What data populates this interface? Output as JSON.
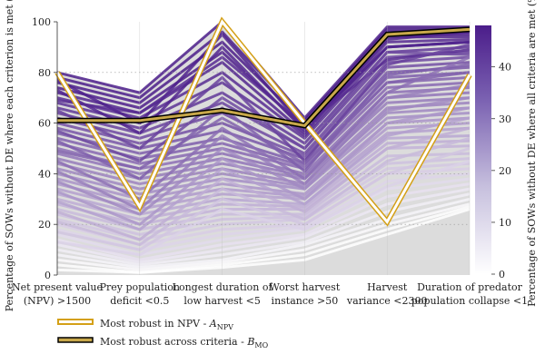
{
  "chart_data": {
    "type": "parallel-coordinates",
    "ylabel": "Percentage of SOWs without DE where each criterion is met (%)",
    "ylim": [
      0,
      100
    ],
    "yticks": [
      0,
      20,
      40,
      60,
      80,
      100
    ],
    "categories": [
      [
        "Net present value",
        "(NPV) >1500"
      ],
      [
        "Prey population",
        "deficit <0.5"
      ],
      [
        "Longest duration of",
        "low harvest <5"
      ],
      [
        "Worst harvest",
        "instance >50"
      ],
      [
        "Harvest",
        "variance <2300"
      ],
      [
        "Duration of predator",
        "population collapse <1"
      ]
    ],
    "colorbar": {
      "label": "Percentage of SOWs without DE where all criteria are met (%)",
      "range": [
        0,
        48
      ],
      "ticks": [
        0,
        10,
        20,
        30,
        40
      ],
      "color_low": "#ffffff",
      "color_high": "#4b1d8a"
    },
    "background_region": {
      "color": "#dcdcdc",
      "upper": [
        80,
        72,
        100,
        62,
        98,
        98
      ],
      "lower": [
        0,
        0,
        0,
        0,
        0,
        0
      ]
    },
    "series": [
      {
        "name": "Most robust in NPV - A_NPV",
        "values": [
          80,
          27,
          100,
          60,
          21,
          79
        ],
        "fill": "#ffffff",
        "outline": "#d4a017"
      },
      {
        "name": "Most robust across criteria - B_MO",
        "values": [
          61,
          61,
          65,
          59,
          95,
          97
        ],
        "fill": "#c8a84a",
        "outline": "#000000"
      }
    ],
    "bundle_lines": [
      [
        80,
        72,
        100,
        62,
        98,
        98
      ],
      [
        78,
        70,
        96,
        61,
        97,
        97
      ],
      [
        76,
        68,
        92,
        60,
        96,
        96
      ],
      [
        74,
        66,
        88,
        58,
        95,
        95
      ],
      [
        72,
        64,
        84,
        56,
        94,
        94
      ],
      [
        70,
        62,
        80,
        55,
        92,
        93
      ],
      [
        68,
        60,
        76,
        54,
        90,
        92
      ],
      [
        66,
        58,
        72,
        52,
        88,
        90
      ],
      [
        64,
        56,
        68,
        50,
        86,
        88
      ],
      [
        62,
        54,
        64,
        48,
        84,
        86
      ],
      [
        60,
        52,
        60,
        47,
        82,
        84
      ],
      [
        58,
        50,
        57,
        46,
        80,
        82
      ],
      [
        56,
        48,
        54,
        44,
        78,
        80
      ],
      [
        54,
        46,
        52,
        43,
        76,
        78
      ],
      [
        52,
        44,
        50,
        42,
        74,
        76
      ],
      [
        50,
        42,
        48,
        40,
        72,
        74
      ],
      [
        48,
        40,
        46,
        39,
        70,
        72
      ],
      [
        46,
        38,
        44,
        38,
        68,
        70
      ],
      [
        44,
        36,
        42,
        36,
        66,
        68
      ],
      [
        42,
        34,
        40,
        35,
        64,
        66
      ],
      [
        40,
        32,
        38,
        34,
        62,
        64
      ],
      [
        38,
        30,
        36,
        32,
        60,
        62
      ],
      [
        36,
        28,
        34,
        31,
        58,
        60
      ],
      [
        34,
        26,
        32,
        30,
        56,
        58
      ],
      [
        32,
        24,
        30,
        28,
        54,
        55
      ],
      [
        30,
        22,
        28,
        27,
        52,
        53
      ],
      [
        28,
        20,
        26,
        26,
        50,
        51
      ],
      [
        26,
        18,
        24,
        24,
        47,
        48
      ],
      [
        24,
        16,
        22,
        23,
        44,
        46
      ],
      [
        22,
        14,
        20,
        22,
        42,
        44
      ],
      [
        20,
        12,
        18,
        20,
        40,
        42
      ],
      [
        18,
        10,
        16,
        19,
        37,
        40
      ],
      [
        16,
        8,
        14,
        18,
        34,
        38
      ],
      [
        14,
        6,
        12,
        16,
        31,
        36
      ],
      [
        12,
        5,
        10,
        15,
        28,
        34
      ],
      [
        10,
        4,
        8,
        13,
        25,
        32
      ],
      [
        8,
        3,
        6,
        12,
        22,
        30
      ],
      [
        6,
        2,
        5,
        10,
        20,
        28
      ],
      [
        4,
        1,
        4,
        8,
        18,
        27
      ],
      [
        2,
        1,
        3,
        6,
        16,
        26
      ],
      [
        77,
        60,
        95,
        58,
        90,
        92
      ],
      [
        73,
        56,
        90,
        57,
        93,
        96
      ],
      [
        69,
        64,
        86,
        59,
        85,
        89
      ],
      [
        65,
        50,
        78,
        45,
        83,
        91
      ],
      [
        57,
        45,
        70,
        50,
        88,
        87
      ],
      [
        53,
        38,
        66,
        41,
        79,
        83
      ],
      [
        49,
        42,
        62,
        44,
        76,
        80
      ],
      [
        45,
        30,
        58,
        38,
        72,
        86
      ],
      [
        41,
        26,
        55,
        36,
        70,
        75
      ],
      [
        37,
        24,
        50,
        34,
        65,
        70
      ],
      [
        33,
        20,
        46,
        30,
        60,
        66
      ],
      [
        29,
        18,
        42,
        28,
        55,
        62
      ],
      [
        25,
        14,
        38,
        25,
        50,
        58
      ],
      [
        21,
        12,
        34,
        22,
        45,
        54
      ],
      [
        17,
        10,
        30,
        20,
        40,
        50
      ],
      [
        13,
        8,
        26,
        18,
        35,
        45
      ]
    ]
  },
  "legend": {
    "item1_label": "Most robust in NPV - ",
    "item1_sym": "A",
    "item1_sub": "NPV",
    "item2_label": "Most robust across criteria - ",
    "item2_sym": "B",
    "item2_sub": "MO"
  }
}
